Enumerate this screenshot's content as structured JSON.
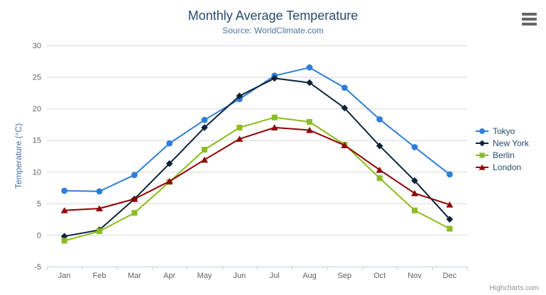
{
  "chart_data": {
    "type": "line",
    "title": "Monthly Average Temperature",
    "subtitle": "Source: WorldClimate.com",
    "xlabel": "",
    "ylabel": "Temperature (°C)",
    "categories": [
      "Jan",
      "Feb",
      "Mar",
      "Apr",
      "May",
      "Jun",
      "Jul",
      "Aug",
      "Sep",
      "Oct",
      "Nov",
      "Dec"
    ],
    "ylim": [
      -5,
      30
    ],
    "ytick_interval": 5,
    "grid": true,
    "legend_position": "right",
    "series": [
      {
        "name": "Tokyo",
        "color": "#2f7ed8",
        "marker": "circle",
        "values": [
          7.0,
          6.9,
          9.5,
          14.5,
          18.2,
          21.5,
          25.2,
          26.5,
          23.3,
          18.3,
          13.9,
          9.6
        ]
      },
      {
        "name": "New York",
        "color": "#0d233a",
        "marker": "diamond",
        "values": [
          -0.2,
          0.8,
          5.7,
          11.3,
          17.0,
          22.0,
          24.8,
          24.1,
          20.1,
          14.1,
          8.6,
          2.5
        ]
      },
      {
        "name": "Berlin",
        "color": "#8bbc21",
        "marker": "square",
        "values": [
          -0.9,
          0.6,
          3.5,
          8.4,
          13.5,
          17.0,
          18.6,
          17.9,
          14.3,
          9.0,
          3.9,
          1.0
        ]
      },
      {
        "name": "London",
        "color": "#910000",
        "marker": "triangle",
        "values": [
          3.9,
          4.2,
          5.7,
          8.5,
          11.9,
          15.2,
          17.0,
          16.6,
          14.2,
          10.3,
          6.6,
          4.8
        ]
      }
    ]
  },
  "credits": "Highcharts.com",
  "icons": {
    "context_menu": "hamburger-menu-icon"
  },
  "colors": {
    "title": "#274b6d",
    "subtitle": "#4d759e",
    "axis_labels": "#606060",
    "axis_title": "#4572a7",
    "axis_line": "#c0d0e0",
    "gridline": "#d8d8d8",
    "legend_text": "#274b6d",
    "credits": "#909090",
    "menu_icon": "#666666"
  }
}
